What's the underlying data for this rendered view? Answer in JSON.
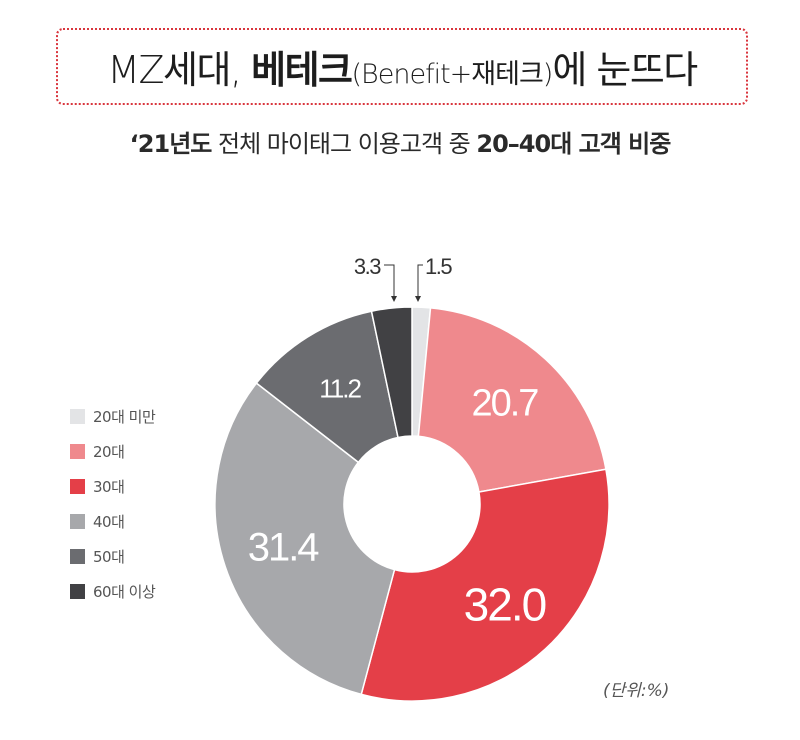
{
  "title": {
    "part1": "MZ세대, ",
    "part2_bold": "베테크",
    "part3_small": "(Benefit+재테크)",
    "part4": "에 눈뜨다"
  },
  "subtitle": {
    "part1_bold": "‘21년도",
    "part2": " 전체 마이태그 이용고객 중 ",
    "part3_bold": "20–40대 고객 비중"
  },
  "unit_label": "(단위:%)",
  "chart_data": {
    "type": "pie",
    "variant": "donut",
    "title": "‘21년도 전체 마이태그 이용고객 중 20–40대 고객 비중",
    "unit": "%",
    "categories": [
      "20대 미만",
      "20대",
      "30대",
      "40대",
      "50대",
      "60대 이상"
    ],
    "values": [
      1.5,
      20.7,
      32.0,
      31.4,
      11.2,
      3.3
    ],
    "labels": [
      "1.5",
      "20.7",
      "32.0",
      "31.4",
      "11.2",
      "3.3"
    ],
    "colors": [
      "#e3e4e6",
      "#ef898d",
      "#e43f48",
      "#a7a8ab",
      "#6b6c70",
      "#414144"
    ],
    "start_angle": "12 o'clock",
    "direction": "clockwise",
    "legend_position": "left",
    "grid": false
  },
  "legend": [
    {
      "label": "20대 미만",
      "color": "#e3e4e6"
    },
    {
      "label": "20대",
      "color": "#ef898d"
    },
    {
      "label": "30대",
      "color": "#e43f48"
    },
    {
      "label": "40대",
      "color": "#a7a8ab"
    },
    {
      "label": "50대",
      "color": "#6b6c70"
    },
    {
      "label": "60대 이상",
      "color": "#414144"
    }
  ]
}
